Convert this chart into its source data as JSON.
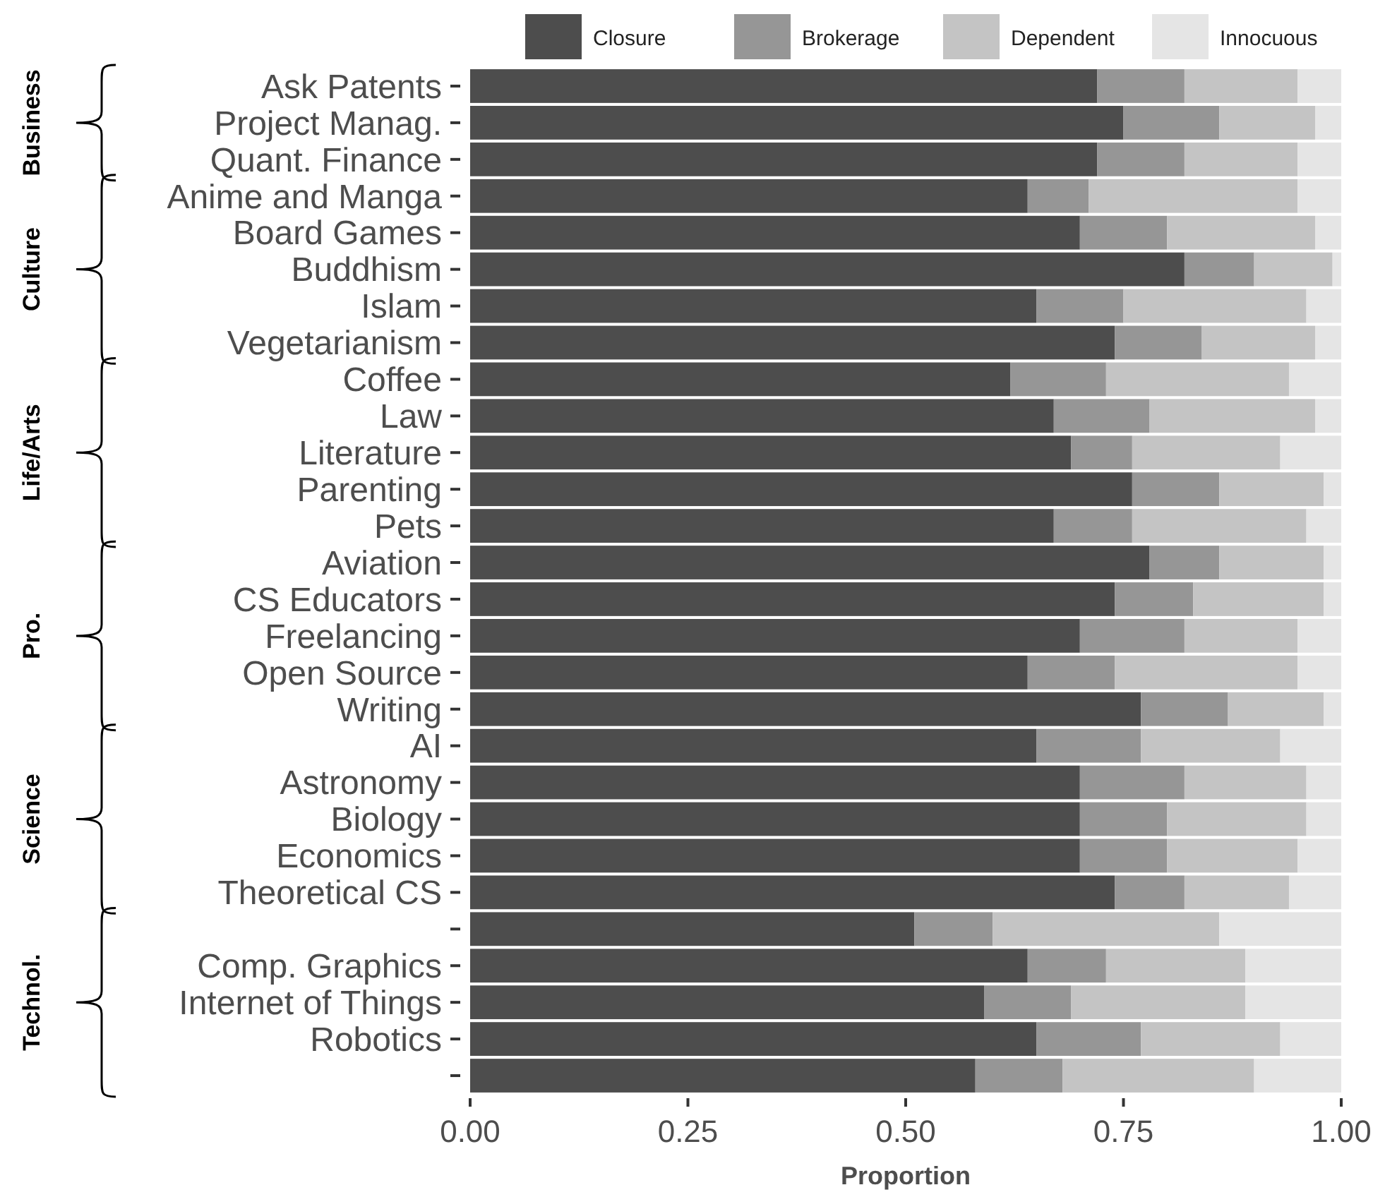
{
  "chart_data": {
    "type": "bar",
    "orientation": "horizontal",
    "stacked": true,
    "categories": [
      "Ask Patents",
      "Project Manag.",
      "Quant. Finance",
      "Anime and Manga",
      "Board Games",
      "Buddhism",
      "Islam",
      "Vegetarianism",
      "Coffee",
      "Law",
      "Literature",
      "Parenting",
      "Pets",
      "Aviation",
      "CS Educators",
      "Freelancing",
      "Open Source",
      "Writing",
      "AI",
      "Astronomy",
      "Biology",
      "Economics",
      "Theoretical CS",
      null,
      "Comp. Graphics",
      "Internet of Things",
      "Robotics",
      null
    ],
    "series": [
      {
        "name": "Closure",
        "color": "#4d4d4d",
        "values": [
          0.72,
          0.75,
          0.72,
          0.64,
          0.7,
          0.82,
          0.65,
          0.74,
          0.62,
          0.67,
          0.69,
          0.76,
          0.67,
          0.78,
          0.74,
          0.7,
          0.64,
          0.77,
          0.65,
          0.7,
          0.7,
          0.7,
          0.74,
          0.51,
          0.64,
          0.59,
          0.65,
          0.58
        ]
      },
      {
        "name": "Brokerage",
        "color": "#969696",
        "values": [
          0.1,
          0.11,
          0.1,
          0.07,
          0.1,
          0.08,
          0.1,
          0.1,
          0.11,
          0.11,
          0.07,
          0.1,
          0.09,
          0.08,
          0.09,
          0.12,
          0.1,
          0.1,
          0.12,
          0.12,
          0.1,
          0.1,
          0.08,
          0.09,
          0.09,
          0.1,
          0.12,
          0.1
        ]
      },
      {
        "name": "Dependent",
        "color": "#c4c4c4",
        "values": [
          0.13,
          0.11,
          0.13,
          0.24,
          0.17,
          0.09,
          0.21,
          0.13,
          0.21,
          0.19,
          0.17,
          0.12,
          0.2,
          0.12,
          0.15,
          0.13,
          0.21,
          0.11,
          0.16,
          0.14,
          0.16,
          0.15,
          0.12,
          0.26,
          0.16,
          0.2,
          0.16,
          0.22
        ]
      },
      {
        "name": "Innocuous",
        "color": "#e5e5e5",
        "values": [
          0.05,
          0.03,
          0.05,
          0.05,
          0.03,
          0.01,
          0.04,
          0.03,
          0.06,
          0.03,
          0.07,
          0.02,
          0.04,
          0.02,
          0.02,
          0.05,
          0.05,
          0.02,
          0.07,
          0.04,
          0.04,
          0.05,
          0.06,
          0.14,
          0.11,
          0.11,
          0.07,
          0.1
        ]
      }
    ],
    "xlim": [
      0,
      1
    ],
    "xticks": [
      {
        "value": 0,
        "label": "0.00"
      },
      {
        "value": 0.25,
        "label": "0.25"
      },
      {
        "value": 0.5,
        "label": "0.50"
      },
      {
        "value": 0.75,
        "label": "0.75"
      },
      {
        "value": 1,
        "label": "1.00"
      }
    ],
    "xlabel": "Proportion",
    "legend": "top",
    "grid": false,
    "annotations": [
      "Business",
      "Culture",
      "Life/Arts",
      "Pro.",
      "Science",
      "Technol."
    ]
  }
}
